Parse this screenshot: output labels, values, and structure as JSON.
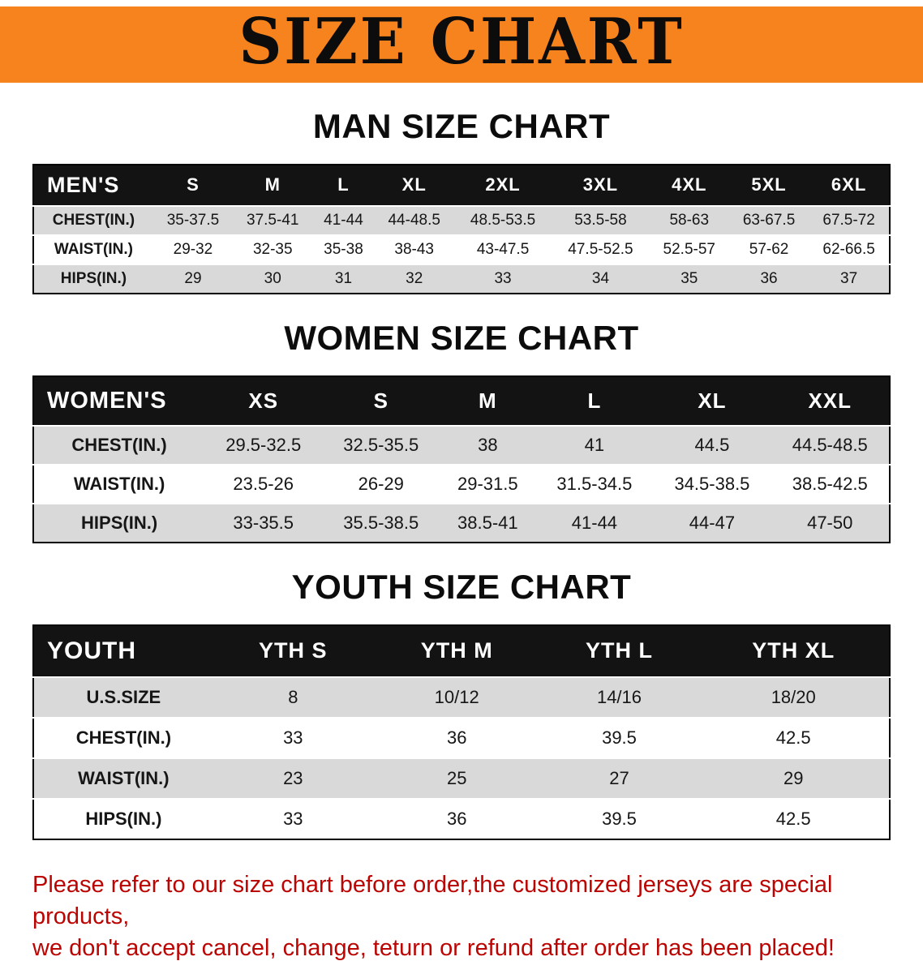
{
  "banner": {
    "title": "SIZE CHART"
  },
  "colors": {
    "banner_bg": "#F6831D",
    "header_bg": "#131313",
    "stripe": "#D9D9D9",
    "disclaimer_red": "#BB0503"
  },
  "sections": [
    {
      "id": "men",
      "heading": "MAN SIZE CHART",
      "table": {
        "header": [
          "MEN'S",
          "S",
          "M",
          "L",
          "XL",
          "2XL",
          "3XL",
          "4XL",
          "5XL",
          "6XL"
        ],
        "rows": [
          [
            "CHEST(IN.)",
            "35-37.5",
            "37.5-41",
            "41-44",
            "44-48.5",
            "48.5-53.5",
            "53.5-58",
            "58-63",
            "63-67.5",
            "67.5-72"
          ],
          [
            "WAIST(IN.)",
            "29-32",
            "32-35",
            "35-38",
            "38-43",
            "43-47.5",
            "47.5-52.5",
            "52.5-57",
            "57-62",
            "62-66.5"
          ],
          [
            "HIPS(IN.)",
            "29",
            "30",
            "31",
            "32",
            "33",
            "34",
            "35",
            "36",
            "37"
          ]
        ]
      }
    },
    {
      "id": "women",
      "heading": "WOMEN SIZE CHART",
      "table": {
        "header": [
          "WOMEN'S",
          "XS",
          "S",
          "M",
          "L",
          "XL",
          "XXL"
        ],
        "rows": [
          [
            "CHEST(IN.)",
            "29.5-32.5",
            "32.5-35.5",
            "38",
            "41",
            "44.5",
            "44.5-48.5"
          ],
          [
            "WAIST(IN.)",
            "23.5-26",
            "26-29",
            "29-31.5",
            "31.5-34.5",
            "34.5-38.5",
            "38.5-42.5"
          ],
          [
            "HIPS(IN.)",
            "33-35.5",
            "35.5-38.5",
            "38.5-41",
            "41-44",
            "44-47",
            "47-50"
          ]
        ]
      }
    },
    {
      "id": "youth",
      "heading": "YOUTH SIZE CHART",
      "table": {
        "header": [
          "YOUTH",
          "YTH S",
          "YTH M",
          "YTH L",
          "YTH XL"
        ],
        "rows": [
          [
            "U.S.SIZE",
            "8",
            "10/12",
            "14/16",
            "18/20"
          ],
          [
            "CHEST(IN.)",
            "33",
            "36",
            "39.5",
            "42.5"
          ],
          [
            "WAIST(IN.)",
            "23",
            "25",
            "27",
            "29"
          ],
          [
            "HIPS(IN.)",
            "33",
            "36",
            "39.5",
            "42.5"
          ]
        ]
      }
    }
  ],
  "disclaimer": {
    "line1": "Please refer to our size chart before order,the customized jerseys are special products,",
    "line2": "we don't accept cancel, change, teturn or refund after order has been placed!"
  }
}
